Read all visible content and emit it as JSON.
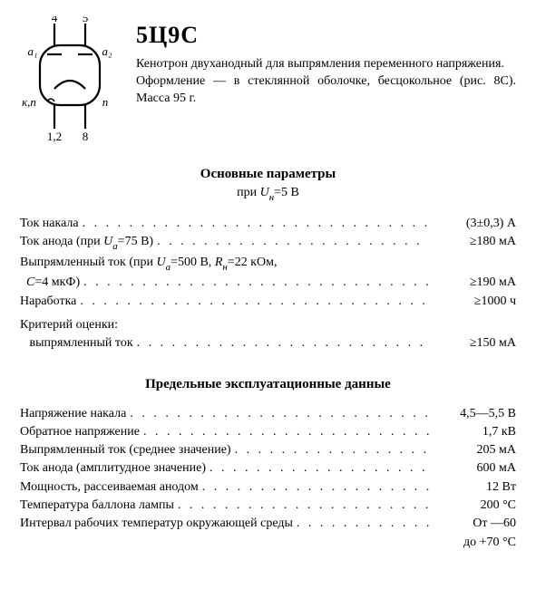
{
  "title": "5Ц9С",
  "desc_lines": [
    "Кенотрон двуханодный для выпрямления переменного напряжения.",
    "Оформление — в стеклянной оболочке, бесцокольное (рис. 8С). Масса 95 г."
  ],
  "diagram": {
    "pin_top_left": "4",
    "pin_top_right": "5",
    "label_a1": "а₁",
    "label_a2": "а₂",
    "label_kn_left": "к,п",
    "label_n_right": "п",
    "pin_bottom_left": "1,2",
    "pin_bottom_right": "8",
    "stroke": "#000000"
  },
  "section1": {
    "title": "Основные параметры",
    "sub_prefix": "при  ",
    "sub_sym": "U",
    "sub_idx": "н",
    "sub_suffix": "=5 В"
  },
  "rows1": [
    {
      "label": "Ток накала",
      "val": "(3±0,3) А"
    },
    {
      "label_html": "Ток анода (при <i>U</i><span class='sub'>a</span>=75 В)",
      "val": "≥180 мА"
    },
    {
      "label_html": "Выпрямленный ток (при <i>U</i><span class='sub'>a</span>=500 В, <i>R</i><span class='sub'>н</span>=22 кОм,",
      "noval": true
    },
    {
      "label_html": "&nbsp;&nbsp;<i>C</i>=4 мкФ)",
      "val": "≥190 мА"
    },
    {
      "label": "Наработка",
      "val": "≥1000 ч"
    },
    {
      "gap": "sm"
    },
    {
      "label": "Критерий оценки:",
      "noval": true
    },
    {
      "label": "   выпрямленный ток",
      "val": "≥150 мА"
    }
  ],
  "section2": {
    "title": "Предельные эксплуатационные данные"
  },
  "rows2": [
    {
      "label": "Напряжение накала",
      "val": "4,5—5,5 В"
    },
    {
      "label": "Обратное напряжение",
      "val": "1,7 кВ"
    },
    {
      "label": "Выпрямленный ток (среднее значение)",
      "val": "205 мА"
    },
    {
      "label": "Ток анода (амплитудное значение)",
      "val": "600 мА"
    },
    {
      "label": "Мощность, рассеиваемая анодом",
      "val": "12 Вт"
    },
    {
      "label": "Температура баллона лампы",
      "val": "200 °С"
    },
    {
      "label": "Интервал рабочих температур окружающей среды",
      "val": "От —60"
    },
    {
      "valonly": true,
      "val": "до +70 °С"
    }
  ]
}
